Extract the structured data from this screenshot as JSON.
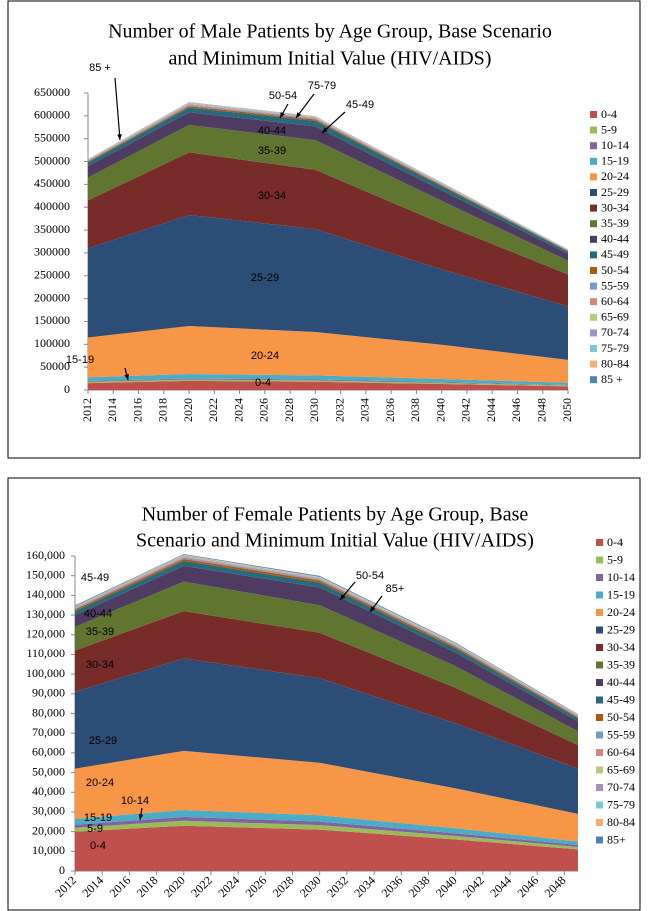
{
  "chart_data": [
    {
      "type": "stacked-area",
      "title": [
        "Number of Male Patients by Age Group, Base Scenario",
        "and Minimum Initial Value (HIV/AIDS)"
      ],
      "x": [
        2012,
        2020,
        2030,
        2040,
        2050
      ],
      "xlim": [
        2012,
        2050
      ],
      "xticks": [
        2012,
        2014,
        2016,
        2018,
        2020,
        2022,
        2024,
        2026,
        2028,
        2030,
        2032,
        2034,
        2036,
        2038,
        2040,
        2042,
        2044,
        2046,
        2048,
        2050
      ],
      "ylim": [
        0,
        650000
      ],
      "yticks": [
        0,
        50000,
        100000,
        150000,
        200000,
        250000,
        300000,
        350000,
        400000,
        450000,
        500000,
        550000,
        600000,
        650000
      ],
      "series": [
        {
          "name": "0-4",
          "color": "#c0504d",
          "values": [
            15000,
            20000,
            18000,
            13000,
            8000
          ]
        },
        {
          "name": "5-9",
          "color": "#9bbb59",
          "values": [
            3000,
            3000,
            3000,
            2500,
            2000
          ]
        },
        {
          "name": "10-14",
          "color": "#8064a2",
          "values": [
            2000,
            2000,
            2000,
            1500,
            1000
          ]
        },
        {
          "name": "15-19",
          "color": "#4bacc6",
          "values": [
            8000,
            10000,
            9000,
            7000,
            5000
          ]
        },
        {
          "name": "20-24",
          "color": "#f79646",
          "values": [
            87000,
            105000,
            95000,
            75000,
            50000
          ]
        },
        {
          "name": "25-29",
          "color": "#2c4d75",
          "values": [
            195000,
            243000,
            225000,
            165000,
            117000
          ]
        },
        {
          "name": "30-34",
          "color": "#772c2a",
          "values": [
            105000,
            137000,
            130000,
            100000,
            70000
          ]
        },
        {
          "name": "35-39",
          "color": "#5f7530",
          "values": [
            50000,
            60000,
            65000,
            50000,
            30000
          ]
        },
        {
          "name": "40-44",
          "color": "#4d3b62",
          "values": [
            25000,
            28000,
            30000,
            23000,
            15000
          ]
        },
        {
          "name": "45-49",
          "color": "#276a7c",
          "values": [
            8000,
            10000,
            12000,
            9000,
            5000
          ]
        },
        {
          "name": "50-54",
          "color": "#b65708",
          "values": [
            2000,
            3000,
            3000,
            2000,
            1500
          ]
        },
        {
          "name": "55-59",
          "color": "#729aca",
          "values": [
            1500,
            2500,
            2000,
            1500,
            1000
          ]
        },
        {
          "name": "60-64",
          "color": "#d9827f",
          "values": [
            1000,
            2000,
            1500,
            1200,
            800
          ]
        },
        {
          "name": "65-69",
          "color": "#b3cb83",
          "values": [
            800,
            1500,
            1200,
            1000,
            600
          ]
        },
        {
          "name": "70-74",
          "color": "#a391bd",
          "values": [
            500,
            1000,
            800,
            700,
            400
          ]
        },
        {
          "name": "75-79",
          "color": "#7ec7d8",
          "values": [
            400,
            800,
            600,
            500,
            300
          ]
        },
        {
          "name": "80-84",
          "color": "#f8ac6f",
          "values": [
            300,
            600,
            400,
            400,
            200
          ]
        },
        {
          "name": "85 +",
          "color": "#4f81bd",
          "values": [
            500,
            600,
            500,
            700,
            200
          ]
        }
      ],
      "annotations": [
        "85 +",
        "50-54",
        "75-79",
        "45-49",
        "40-44",
        "35-39",
        "30-34",
        "25-29",
        "20-24",
        "15-19",
        "0-4"
      ]
    },
    {
      "type": "stacked-area",
      "title": [
        "Number of Female Patients by Age Group, Base",
        "Scenario and Minimum Initial Value (HIV/AIDS)"
      ],
      "x": [
        2012,
        2020,
        2030,
        2040,
        2049
      ],
      "xlim": [
        2012,
        2049
      ],
      "xticks": [
        2012,
        2014,
        2016,
        2018,
        2020,
        2022,
        2024,
        2026,
        2028,
        2030,
        2032,
        2034,
        2036,
        2038,
        2040,
        2042,
        2044,
        2046,
        2048
      ],
      "ylim": [
        0,
        160000
      ],
      "yticks": [
        0,
        {
          "value": 10000,
          "label": "10,000"
        },
        {
          "value": 20000,
          "label": "20,000"
        },
        {
          "value": 30000,
          "label": "30,000"
        },
        {
          "value": 40000,
          "label": "40,000"
        },
        {
          "value": 50000,
          "label": "50,000"
        },
        {
          "value": 60000,
          "label": "60,000"
        },
        {
          "value": 70000,
          "label": "70,000"
        },
        {
          "value": 80000,
          "label": "80,000"
        },
        {
          "value": 90000,
          "label": "90,000"
        },
        {
          "value": 100000,
          "label": "100,000"
        },
        {
          "value": 110000,
          "label": "110,000"
        },
        {
          "value": 120000,
          "label": "120,000"
        },
        {
          "value": 130000,
          "label": "130,000"
        },
        {
          "value": 140000,
          "label": "140,000"
        },
        {
          "value": 150000,
          "label": "150,000"
        },
        {
          "value": 160000,
          "label": "160,000"
        }
      ],
      "series": [
        {
          "name": "0-4",
          "color": "#c0504d",
          "values": [
            20000,
            23000,
            21000,
            16000,
            11000
          ]
        },
        {
          "name": "5-9",
          "color": "#9bbb59",
          "values": [
            2000,
            2500,
            2300,
            1800,
            1200
          ]
        },
        {
          "name": "10-14",
          "color": "#8064a2",
          "values": [
            1500,
            2000,
            1800,
            1400,
            1000
          ]
        },
        {
          "name": "15-19",
          "color": "#4bacc6",
          "values": [
            3000,
            3500,
            3200,
            2500,
            1800
          ]
        },
        {
          "name": "20-24",
          "color": "#f79646",
          "values": [
            25500,
            30000,
            26700,
            20300,
            14000
          ]
        },
        {
          "name": "25-29",
          "color": "#2c4d75",
          "values": [
            39000,
            47000,
            43000,
            33000,
            23000
          ]
        },
        {
          "name": "30-34",
          "color": "#772c2a",
          "values": [
            21000,
            24000,
            23000,
            18000,
            12000
          ]
        },
        {
          "name": "35-39",
          "color": "#5f7530",
          "values": [
            12000,
            15000,
            14000,
            11000,
            7000
          ]
        },
        {
          "name": "40-44",
          "color": "#4d3b62",
          "values": [
            6000,
            8000,
            9000,
            7000,
            5000
          ]
        },
        {
          "name": "45-49",
          "color": "#276a7c",
          "values": [
            2000,
            2500,
            2500,
            2000,
            1500
          ]
        },
        {
          "name": "50-54",
          "color": "#b65708",
          "values": [
            800,
            1000,
            1000,
            800,
            600
          ]
        },
        {
          "name": "55-59",
          "color": "#729aca",
          "values": [
            500,
            600,
            600,
            500,
            400
          ]
        },
        {
          "name": "60-64",
          "color": "#d9827f",
          "values": [
            400,
            500,
            400,
            400,
            300
          ]
        },
        {
          "name": "65-69",
          "color": "#b3cb83",
          "values": [
            300,
            400,
            300,
            300,
            200
          ]
        },
        {
          "name": "70-74",
          "color": "#a391bd",
          "values": [
            200,
            300,
            200,
            200,
            150
          ]
        },
        {
          "name": "75-79",
          "color": "#7ec7d8",
          "values": [
            200,
            200,
            200,
            200,
            100
          ]
        },
        {
          "name": "80-84",
          "color": "#f8ac6f",
          "values": [
            100,
            200,
            200,
            200,
            100
          ]
        },
        {
          "name": "85+",
          "color": "#4f81bd",
          "values": [
            400,
            300,
            500,
            400,
            300
          ]
        }
      ],
      "annotations": [
        "45-49",
        "40-44",
        "35-39",
        "30-34",
        "25-29",
        "20-24",
        "15-19",
        "5-9",
        "10-14",
        "0-4",
        "50-54",
        "85+"
      ]
    }
  ]
}
